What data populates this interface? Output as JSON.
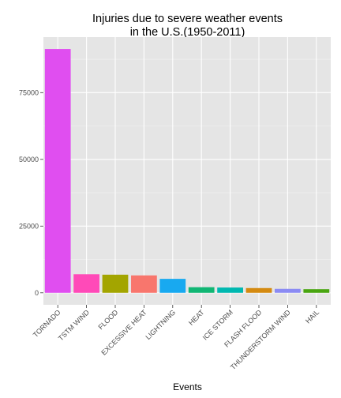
{
  "chart_data": {
    "type": "bar",
    "title_lines": [
      "Injuries due to severe weather events",
      "in the U.S.(1950-2011)"
    ],
    "xlabel": "Events",
    "ylabel": "",
    "categories": [
      "TORNADO",
      "TSTM WIND",
      "FLOOD",
      "EXCESSIVE HEAT",
      "LIGHTNING",
      "HEAT",
      "ICE STORM",
      "FLASH FLOOD",
      "THUNDERSTORM WIND",
      "HAIL"
    ],
    "values": [
      91346,
      6957,
      6789,
      6525,
      5230,
      2100,
      1975,
      1777,
      1488,
      1361
    ],
    "colors": [
      "#e04ef0",
      "#ff4ab8",
      "#a3a500",
      "#f8766d",
      "#18a9f0",
      "#11b674",
      "#00b8b0",
      "#d48a11",
      "#8b8bf3",
      "#49a510"
    ],
    "yticks": [
      0,
      25000,
      50000,
      75000
    ],
    "ylim": [
      -4500,
      95800
    ],
    "grid": true,
    "legend": "none",
    "panel_background": "#e5e5e5"
  }
}
